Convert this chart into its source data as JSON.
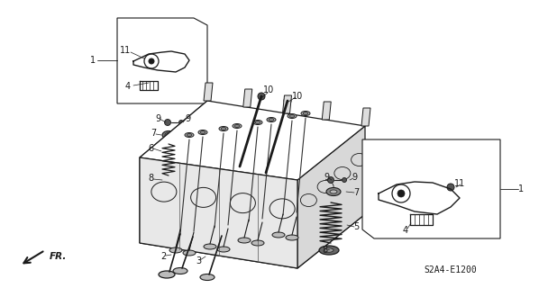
{
  "bg_color": "#ffffff",
  "line_color": "#1a1a1a",
  "label_color": "#1a1a1a",
  "part_code": "S2A4-E1200",
  "fr_label": "FR.",
  "fig_width": 5.98,
  "fig_height": 3.2,
  "dpi": 100
}
